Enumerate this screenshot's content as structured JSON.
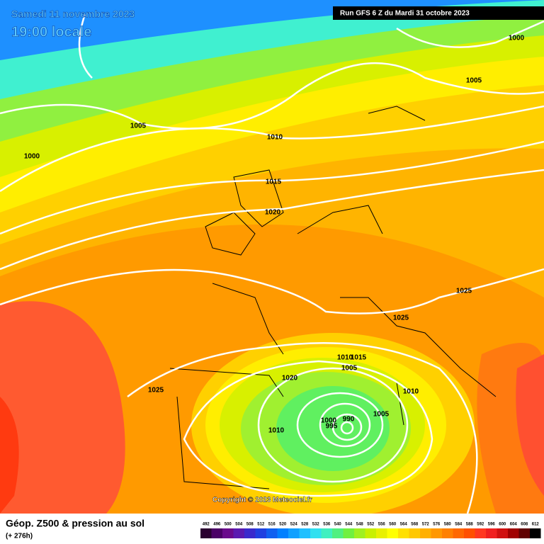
{
  "header": {
    "date": "Samedi 11 novembre 2023",
    "time": "19:00 locale",
    "run": "Run GFS 6 Z du Mardi 31 octobre 2023"
  },
  "isobar_labels": [
    "1000",
    "1005",
    "1005",
    "1000",
    "1010",
    "1015",
    "1020",
    "1025",
    "1025",
    "1010",
    "1015",
    "1005",
    "1020",
    "1025",
    "1010",
    "1005",
    "990",
    "1000",
    "995",
    "1010"
  ],
  "copyright": "Copyright © 2023 Meteociel.fr",
  "legend": {
    "title": "Géop. Z500 & pression au sol",
    "lead": "(+ 276h)",
    "scale": [
      492,
      496,
      500,
      504,
      508,
      512,
      516,
      520,
      524,
      528,
      532,
      536,
      540,
      544,
      548,
      552,
      556,
      560,
      564,
      568,
      572,
      576,
      580,
      584,
      588,
      592,
      596,
      600,
      604,
      608,
      612
    ],
    "colors": [
      "#2a0030",
      "#4b0066",
      "#6a0a8c",
      "#5a1ab0",
      "#3a2acc",
      "#2040e0",
      "#1060f0",
      "#0080ff",
      "#10a0ff",
      "#20c0ff",
      "#30e0f0",
      "#40f0c0",
      "#50f080",
      "#70f040",
      "#a0f020",
      "#c8f000",
      "#e8f000",
      "#ffff00",
      "#ffe000",
      "#ffc800",
      "#ffb000",
      "#ff9800",
      "#ff8000",
      "#ff6800",
      "#ff5000",
      "#ff3820",
      "#f02020",
      "#d01010",
      "#a00000",
      "#600000",
      "#000000"
    ]
  }
}
